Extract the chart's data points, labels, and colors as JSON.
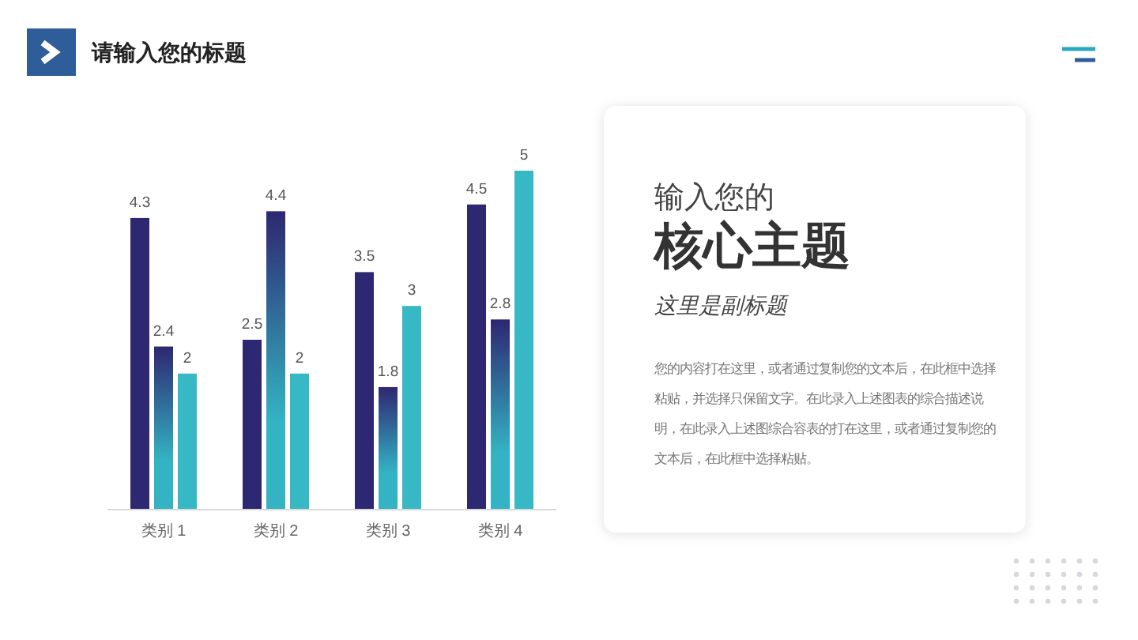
{
  "chart_data": {
    "type": "bar",
    "title": "请输入您的标题",
    "categories": [
      "类别 1",
      "类别 2",
      "类别 3",
      "类别 4"
    ],
    "series": [
      {
        "color": "#2e2771",
        "values": [
          4.3,
          2.5,
          3.5,
          4.5
        ]
      },
      {
        "color": "#33b3c3",
        "values": [
          2.4,
          4.4,
          1.8,
          2.8
        ]
      },
      {
        "color": "#36b9c4",
        "values": [
          2,
          2,
          3,
          5
        ]
      }
    ],
    "data_labels": true,
    "annotations": [
      "输入您的",
      "核心主题",
      "这里是副标题",
      "您的内容打在这里，或者通过复制您的文本后，在此框中选择粘贴，并选择只保留文字。在此录入上述图表的综合描述说明，在此录入上述图综合容表的打在这里，或者通过复制您的文本后，在此框中选择粘贴。"
    ]
  }
}
